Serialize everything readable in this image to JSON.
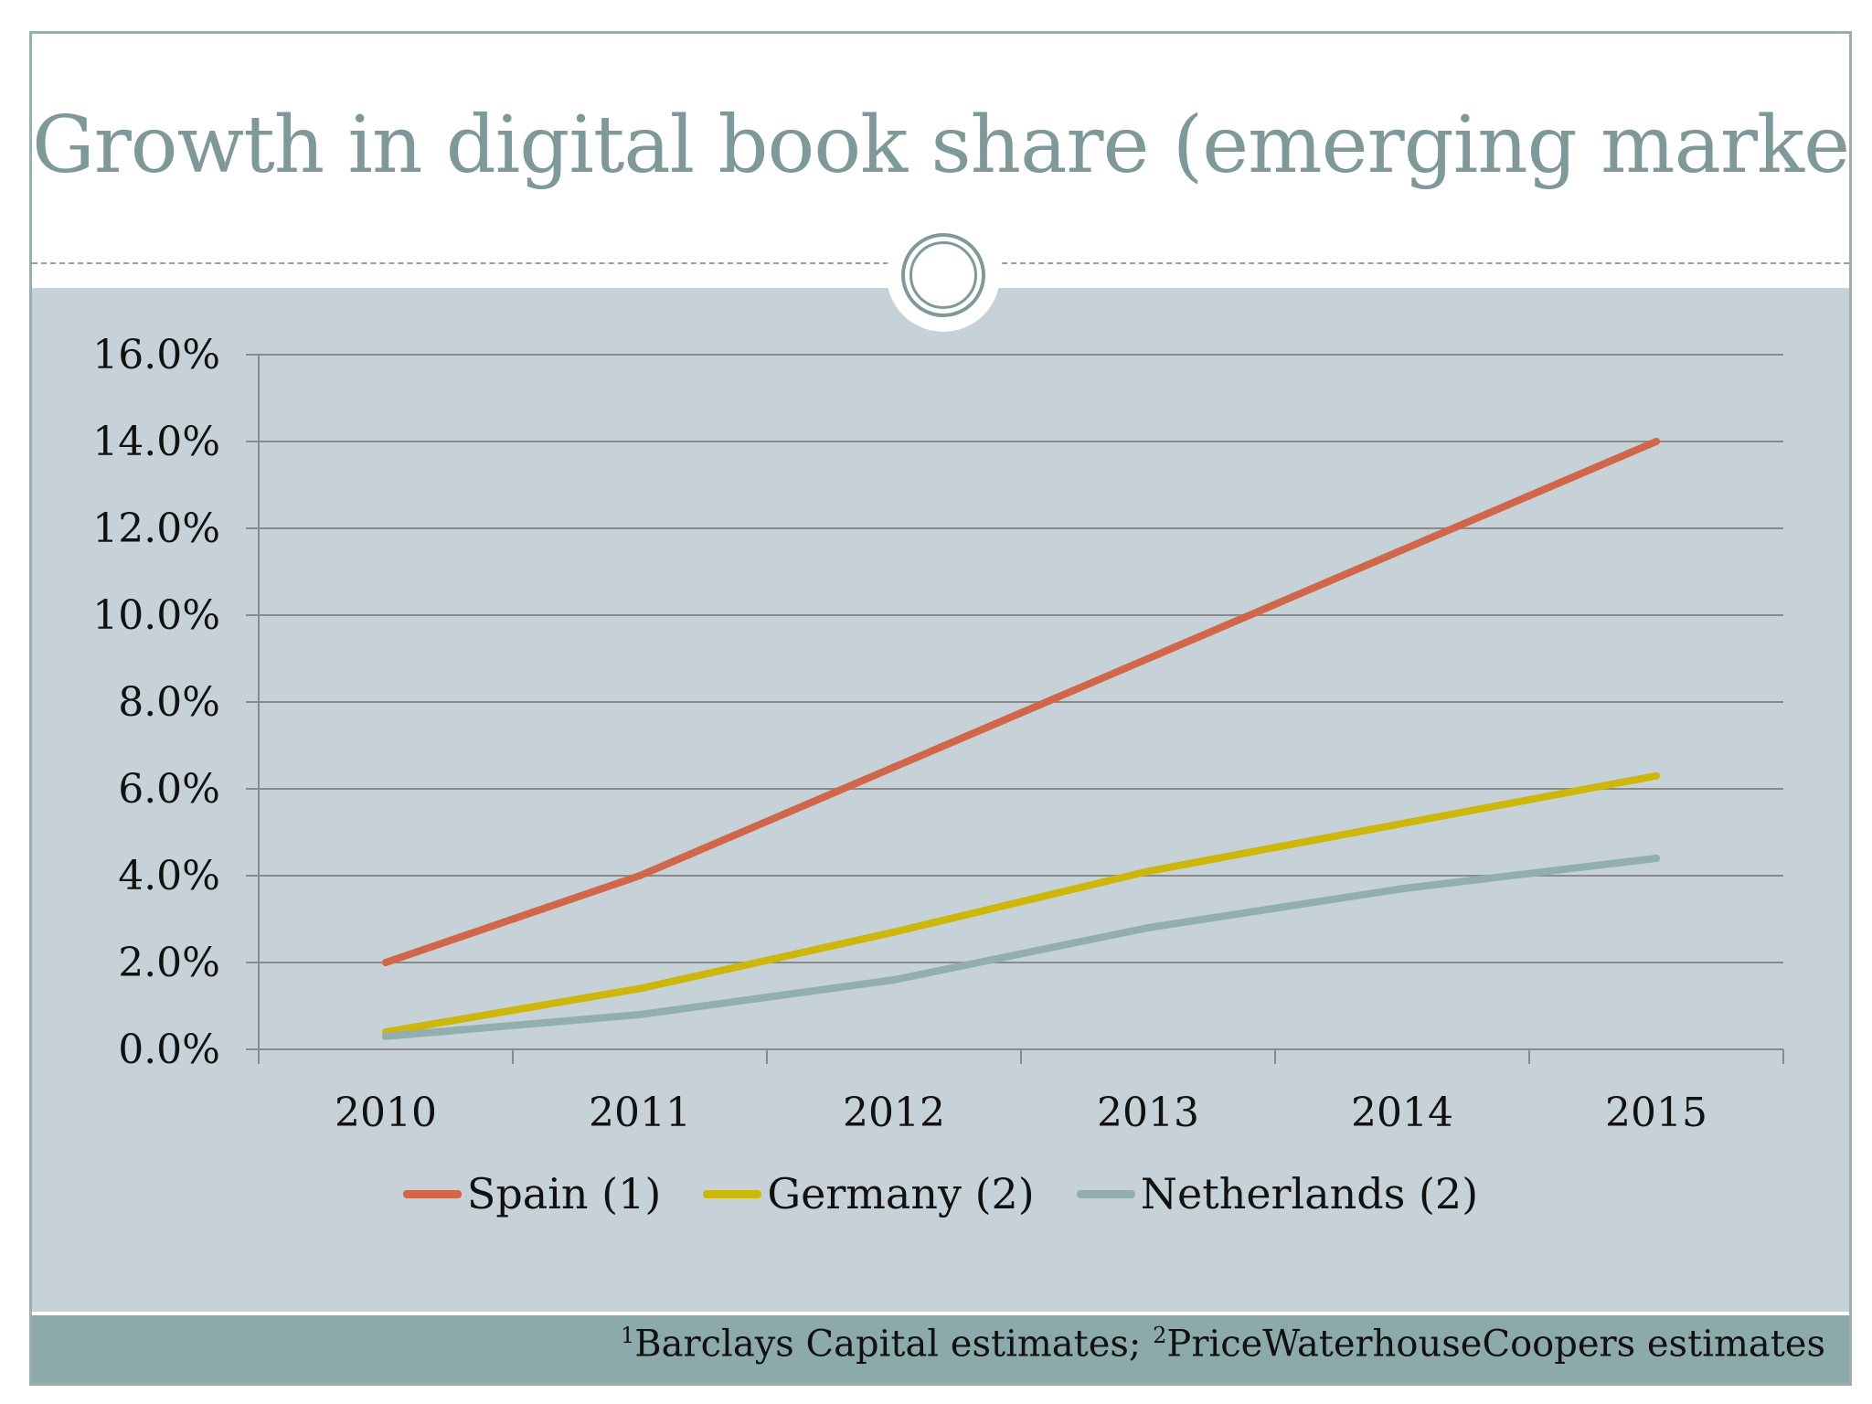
{
  "slide": {
    "title": "Growth in digital book share (emerging markets)",
    "footnote": {
      "sup1": "1",
      "text1": "Barclays Capital estimates; ",
      "sup2": "2",
      "text2": "PriceWaterhouseCoopers estimates"
    }
  },
  "colors": {
    "title": "#7f9998",
    "content_bg": "#c6d2d7",
    "footer_bg": "#8daaaa",
    "gridline": "#8a8a8a"
  },
  "chart_data": {
    "type": "line",
    "categories": [
      "2010",
      "2011",
      "2012",
      "2013",
      "2014",
      "2015"
    ],
    "series": [
      {
        "name": "Spain (1)",
        "color": "#d2664a",
        "values": [
          2.0,
          4.0,
          6.5,
          9.0,
          11.5,
          14.0
        ]
      },
      {
        "name": "Germany (2)",
        "color": "#cdb70a",
        "values": [
          0.4,
          1.4,
          2.7,
          4.1,
          5.2,
          6.3
        ]
      },
      {
        "name": "Netherlands (2)",
        "color": "#93aeae",
        "values": [
          0.3,
          0.8,
          1.6,
          2.8,
          3.7,
          4.4
        ]
      }
    ],
    "y_ticks": [
      "0.0%",
      "2.0%",
      "4.0%",
      "6.0%",
      "8.0%",
      "10.0%",
      "12.0%",
      "14.0%",
      "16.0%"
    ],
    "ylim": [
      0,
      16
    ],
    "y_unit": "%",
    "grid": true,
    "legend_position": "bottom"
  }
}
